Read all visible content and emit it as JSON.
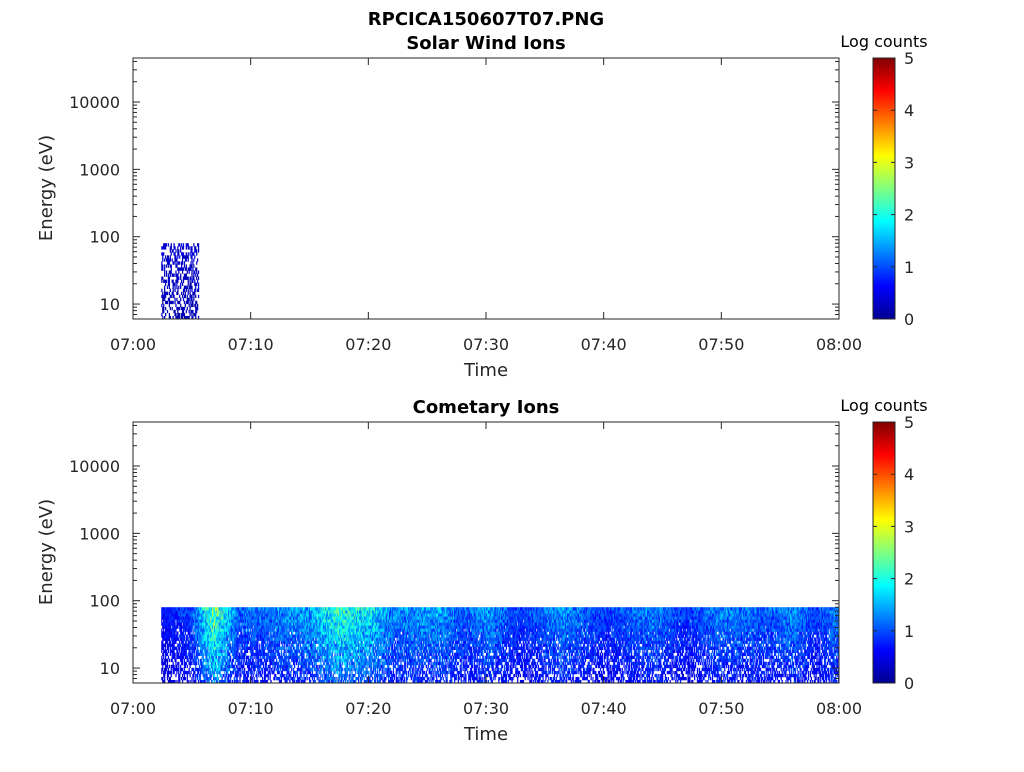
{
  "figure": {
    "title": "RPCICA150607T07.PNG"
  },
  "chart_data": [
    {
      "type": "heatmap",
      "title": "Solar Wind Ions",
      "xlabel": "Time",
      "ylabel": "Energy (eV)",
      "x_tick_labels": [
        "07:00",
        "07:10",
        "07:20",
        "07:30",
        "07:40",
        "07:50",
        "08:00"
      ],
      "x_range_minutes": [
        0,
        60
      ],
      "y_scale": "log",
      "y_range": [
        6,
        45000
      ],
      "y_ticks": [
        10,
        100,
        1000,
        10000
      ],
      "y_tick_labels": [
        "10",
        "100",
        "1000",
        "10000"
      ],
      "colorbar": {
        "title": "Log counts",
        "range": [
          0,
          5
        ],
        "ticks": [
          "0",
          "1",
          "2",
          "3",
          "4",
          "5"
        ],
        "colormap": "jet"
      },
      "data_extent": {
        "x_minutes": [
          2.4,
          5.6
        ],
        "energy_eV": [
          6,
          80
        ]
      },
      "typical_log_counts": 0.3,
      "peak_log_counts": 0.8
    },
    {
      "type": "heatmap",
      "title": "Cometary Ions",
      "xlabel": "Time",
      "ylabel": "Energy (eV)",
      "x_tick_labels": [
        "07:00",
        "07:10",
        "07:20",
        "07:30",
        "07:40",
        "07:50",
        "08:00"
      ],
      "x_range_minutes": [
        0,
        60
      ],
      "y_scale": "log",
      "y_range": [
        6,
        45000
      ],
      "y_ticks": [
        10,
        100,
        1000,
        10000
      ],
      "y_tick_labels": [
        "10",
        "100",
        "1000",
        "10000"
      ],
      "colorbar": {
        "title": "Log counts",
        "range": [
          0,
          5
        ],
        "ticks": [
          "0",
          "1",
          "2",
          "3",
          "4",
          "5"
        ],
        "colormap": "jet"
      },
      "data_extent": {
        "x_minutes": [
          2.4,
          60
        ],
        "energy_eV": [
          6,
          80
        ]
      },
      "intensity_profile": [
        {
          "minute": 2.5,
          "log_counts": 0.7
        },
        {
          "minute": 5,
          "log_counts": 1.1
        },
        {
          "minute": 6.8,
          "log_counts": 2.6
        },
        {
          "minute": 9,
          "log_counts": 1.2
        },
        {
          "minute": 11,
          "log_counts": 1.3
        },
        {
          "minute": 15,
          "log_counts": 1.6
        },
        {
          "minute": 17.5,
          "log_counts": 2.3
        },
        {
          "minute": 20.5,
          "log_counts": 1.9
        },
        {
          "minute": 22,
          "log_counts": 1.4
        },
        {
          "minute": 26,
          "log_counts": 1.6
        },
        {
          "minute": 28,
          "log_counts": 1.2
        },
        {
          "minute": 30,
          "log_counts": 1.5
        },
        {
          "minute": 33,
          "log_counts": 1.0
        },
        {
          "minute": 36.5,
          "log_counts": 1.5
        },
        {
          "minute": 40,
          "log_counts": 1.0
        },
        {
          "minute": 44,
          "log_counts": 1.4
        },
        {
          "minute": 47,
          "log_counts": 1.0
        },
        {
          "minute": 50,
          "log_counts": 1.4
        },
        {
          "minute": 54,
          "log_counts": 1.2
        },
        {
          "minute": 56,
          "log_counts": 1.5
        },
        {
          "minute": 58,
          "log_counts": 1.0
        },
        {
          "minute": 59.5,
          "log_counts": 1.4
        }
      ]
    }
  ]
}
